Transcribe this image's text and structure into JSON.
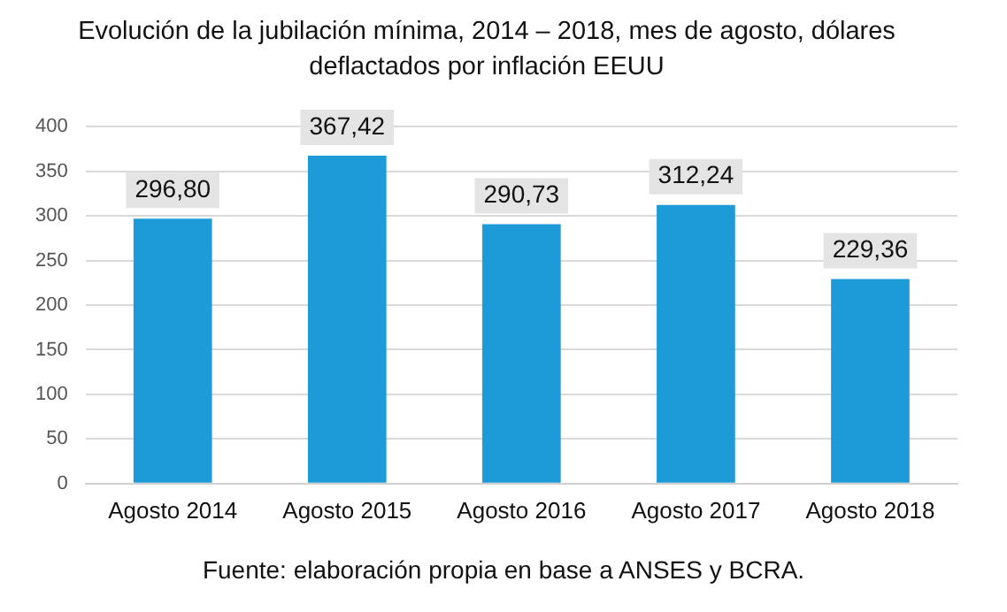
{
  "chart_data": {
    "type": "bar",
    "title": "Evolución de la jubilación mínima, 2014 – 2018, mes de agosto, dólares deflactados por inflación EEUU",
    "categories": [
      "Agosto 2014",
      "Agosto 2015",
      "Agosto 2016",
      "Agosto 2017",
      "Agosto 2018"
    ],
    "values": [
      296.8,
      367.42,
      290.73,
      312.24,
      229.36
    ],
    "value_labels": [
      "296,80",
      "367,42",
      "290,73",
      "312,24",
      "229,36"
    ],
    "color": "#1c9bd8",
    "ylim": [
      0,
      400
    ],
    "yticks": [
      0,
      50,
      100,
      150,
      200,
      250,
      300,
      350,
      400
    ],
    "grid": "y",
    "legend": false,
    "annotations": [
      "Fuente: elaboración propia en base a ANSES y BCRA."
    ]
  }
}
